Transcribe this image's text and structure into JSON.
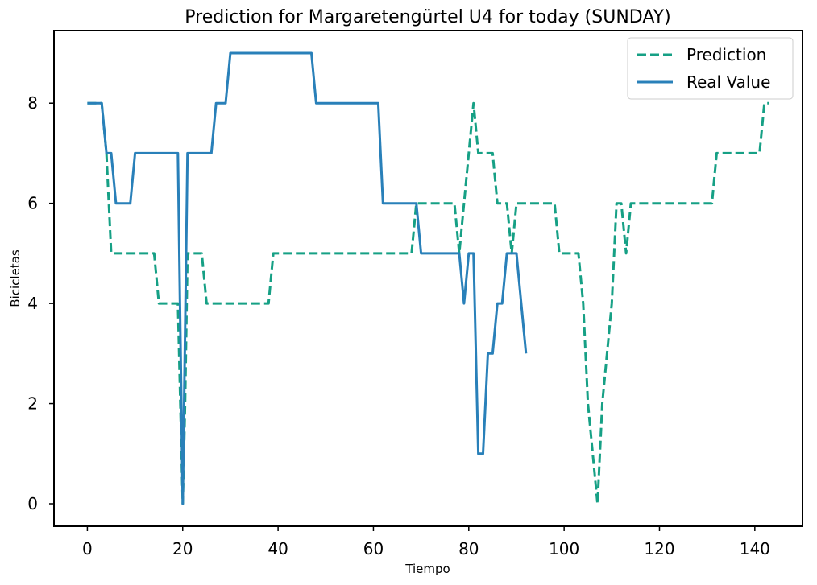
{
  "chart_data": {
    "type": "line",
    "title": "Prediction for Margaretengürtel U4 for today (SUNDAY)",
    "xlabel": "Tiempo",
    "ylabel": "Bicicletas",
    "xlim": [
      -7,
      150
    ],
    "ylim": [
      -0.45,
      9.45
    ],
    "xticks": [
      0,
      20,
      40,
      60,
      80,
      100,
      120,
      140
    ],
    "yticks": [
      0,
      2,
      4,
      6,
      8
    ],
    "grid": false,
    "legend_position": "top-right",
    "series": [
      {
        "name": "Prediction",
        "style": "dashed",
        "color": "#16a085",
        "points": [
          [
            0,
            8
          ],
          [
            3,
            8
          ],
          [
            4,
            7
          ],
          [
            5,
            5
          ],
          [
            14,
            5
          ],
          [
            15,
            4
          ],
          [
            19,
            4
          ],
          [
            19.5,
            2
          ],
          [
            20,
            0
          ],
          [
            20.5,
            2
          ],
          [
            21,
            5
          ],
          [
            24,
            5
          ],
          [
            25,
            4
          ],
          [
            38,
            4
          ],
          [
            39,
            5
          ],
          [
            68,
            5
          ],
          [
            69,
            6
          ],
          [
            77,
            6
          ],
          [
            78,
            5
          ],
          [
            80,
            7
          ],
          [
            81,
            8
          ],
          [
            82,
            7
          ],
          [
            85,
            7
          ],
          [
            86,
            6
          ],
          [
            88,
            6
          ],
          [
            89,
            5
          ],
          [
            90,
            6
          ],
          [
            98,
            6
          ],
          [
            99,
            5
          ],
          [
            103,
            5
          ],
          [
            104,
            4
          ],
          [
            105,
            2
          ],
          [
            107,
            0
          ],
          [
            108,
            2
          ],
          [
            110,
            4
          ],
          [
            111,
            6
          ],
          [
            112,
            6
          ],
          [
            113,
            5
          ],
          [
            114,
            6
          ],
          [
            131,
            6
          ],
          [
            132,
            7
          ],
          [
            141,
            7
          ],
          [
            142,
            8
          ],
          [
            143,
            8
          ]
        ]
      },
      {
        "name": "Real Value",
        "style": "solid",
        "color": "#2980b9",
        "points": [
          [
            0,
            8
          ],
          [
            3,
            8
          ],
          [
            4,
            7
          ],
          [
            5,
            7
          ],
          [
            6,
            6
          ],
          [
            9,
            6
          ],
          [
            10,
            7
          ],
          [
            19,
            7
          ],
          [
            20,
            0
          ],
          [
            21,
            7
          ],
          [
            26,
            7
          ],
          [
            27,
            8
          ],
          [
            29,
            8
          ],
          [
            30,
            9
          ],
          [
            47,
            9
          ],
          [
            48,
            8
          ],
          [
            61,
            8
          ],
          [
            62,
            6
          ],
          [
            69,
            6
          ],
          [
            70,
            5
          ],
          [
            78,
            5
          ],
          [
            79,
            4
          ],
          [
            80,
            5
          ],
          [
            81,
            5
          ],
          [
            82,
            1
          ],
          [
            83,
            1
          ],
          [
            84,
            3
          ],
          [
            85,
            3
          ],
          [
            86,
            4
          ],
          [
            87,
            4
          ],
          [
            88,
            5
          ],
          [
            90,
            5
          ],
          [
            92,
            3
          ]
        ]
      }
    ]
  }
}
